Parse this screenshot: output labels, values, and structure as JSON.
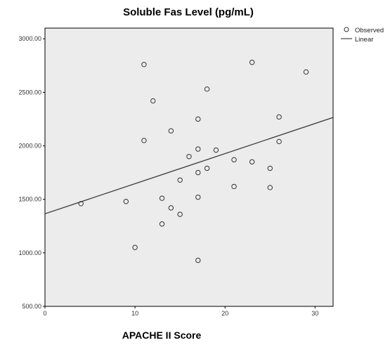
{
  "chart_data": {
    "type": "scatter",
    "title": "Soluble Fas Level (pg/mL)",
    "xlabel": "APACHE II Score",
    "ylabel": "",
    "xlim": [
      0,
      32
    ],
    "ylim": [
      500,
      3100
    ],
    "x_ticks": [
      0,
      10,
      20,
      30
    ],
    "y_ticks": [
      500,
      1000,
      1500,
      2000,
      2500,
      3000
    ],
    "x_tick_labels": [
      "0",
      "10",
      "20",
      "30"
    ],
    "y_tick_labels": [
      "500.00",
      "1000.00",
      "1500.00",
      "2000.00",
      "2500.00",
      "3000.00"
    ],
    "grid": false,
    "background_color": "#ececec",
    "legend_position": "top-right",
    "legend": {
      "observed": "Observed",
      "linear": "Linear"
    },
    "series": [
      {
        "name": "Observed",
        "marker": "circle",
        "x": [
          4,
          9,
          10,
          11,
          11,
          12,
          13,
          13,
          14,
          14,
          15,
          15,
          16,
          17,
          17,
          17,
          17,
          17,
          18,
          18,
          19,
          21,
          21,
          23,
          23,
          25,
          25,
          26,
          26,
          29
        ],
        "y": [
          1460,
          1480,
          1050,
          2760,
          2050,
          2420,
          1510,
          1270,
          2140,
          1420,
          1680,
          1360,
          1900,
          2250,
          1970,
          1750,
          1520,
          930,
          2530,
          1790,
          1960,
          1870,
          1620,
          2780,
          1850,
          1790,
          1610,
          2270,
          2040,
          2690
        ]
      },
      {
        "name": "Linear",
        "type": "line",
        "x": [
          0,
          32
        ],
        "y": [
          1365,
          2265
        ]
      }
    ]
  }
}
